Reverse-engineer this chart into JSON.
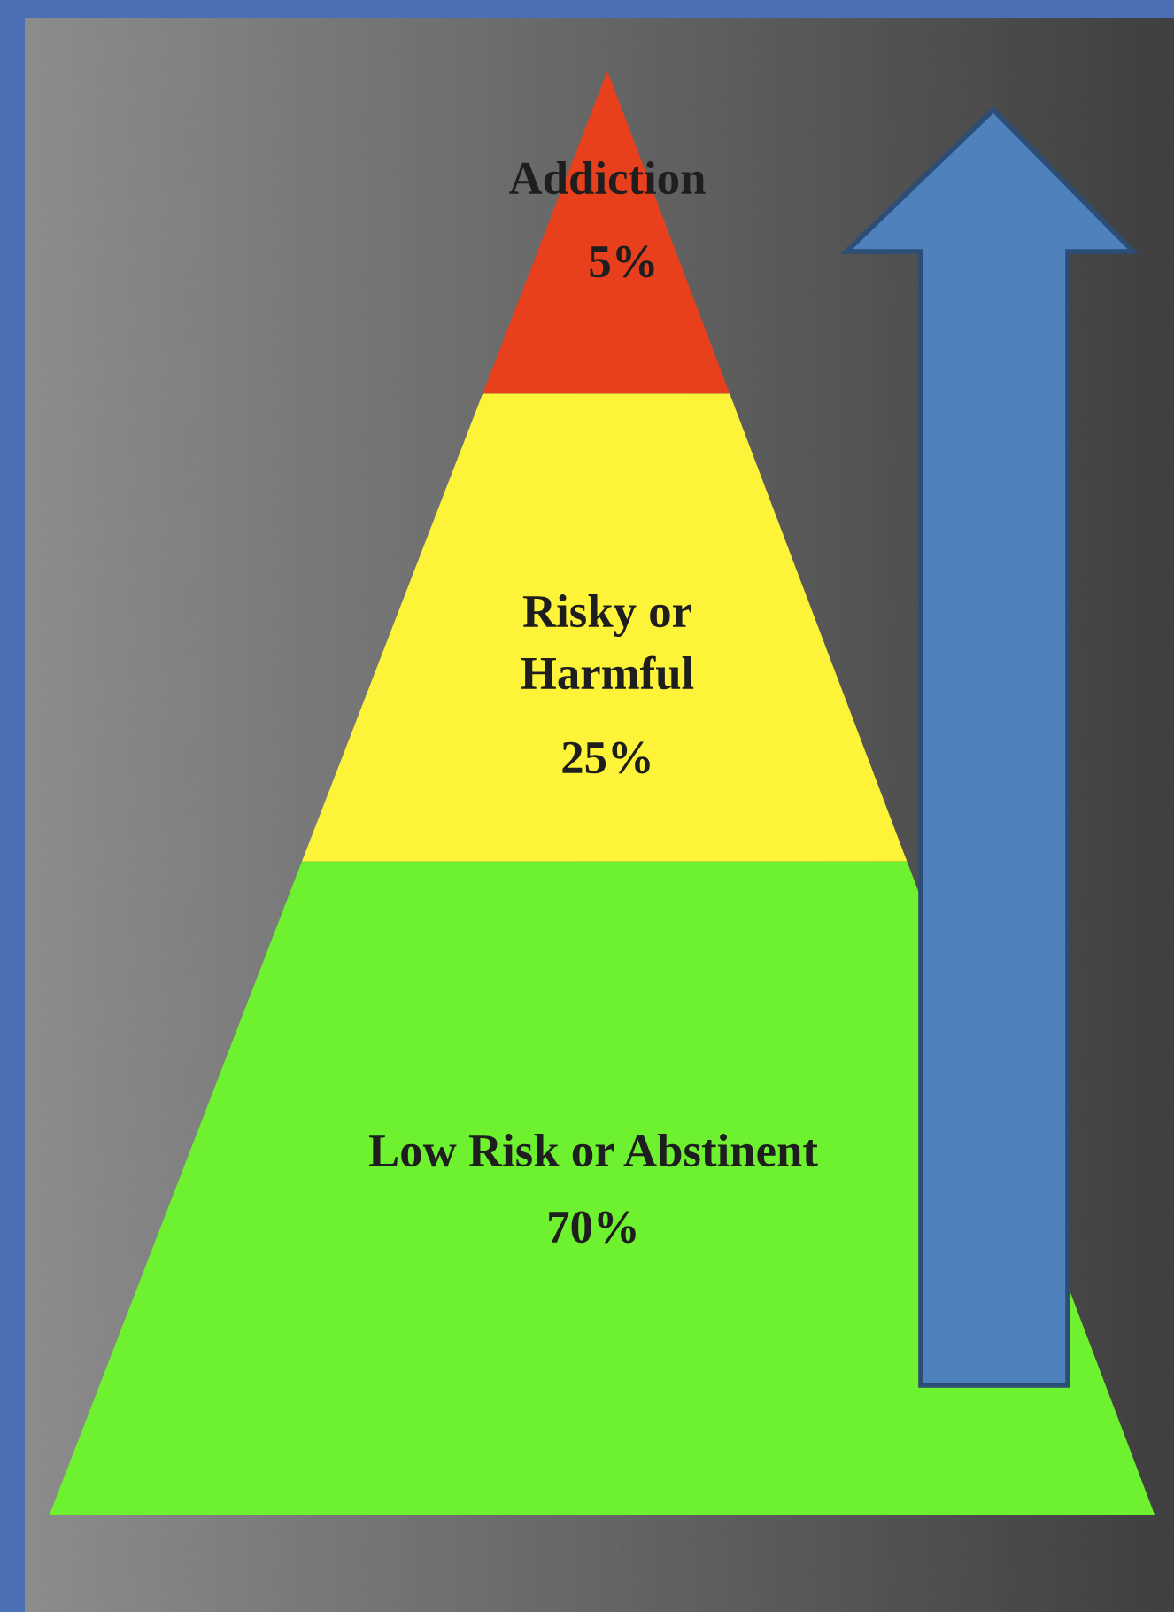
{
  "chart_data": {
    "type": "other",
    "categories": [
      "Addiction",
      "Risky or\nHarmful",
      "Low Risk or Abstinent"
    ],
    "values": [
      5,
      25,
      70
    ],
    "value_labels": [
      "5%",
      "25%",
      "70%"
    ],
    "colors": [
      "#e8401c",
      "#fdf43a",
      "#6ef22f"
    ]
  }
}
